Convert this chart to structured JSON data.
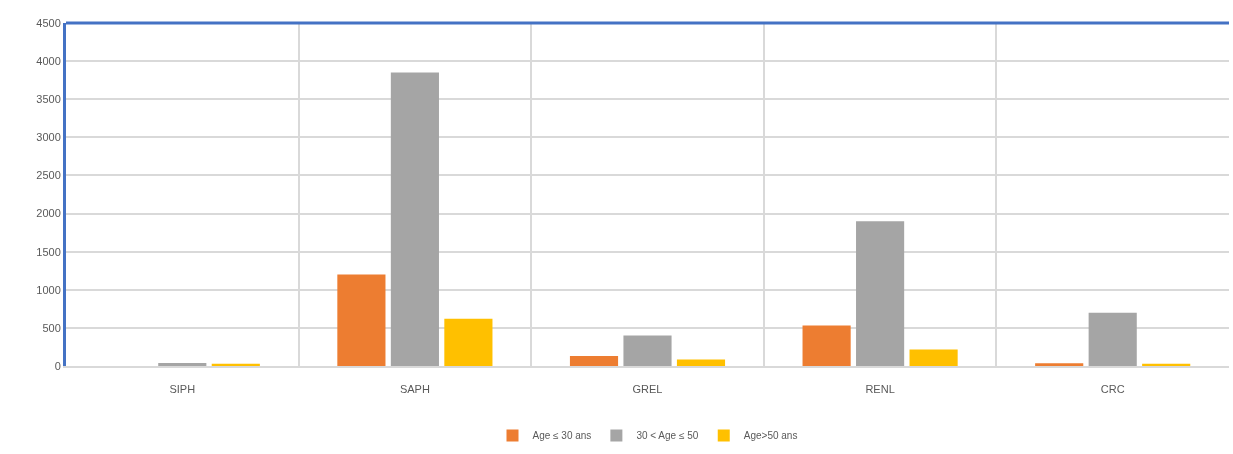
{
  "chart_data": {
    "type": "bar",
    "categories": [
      "SIPH",
      "SAPH",
      "GREL",
      "RENL",
      "CRC"
    ],
    "series": [
      {
        "name": "Age ≤ 30 ans",
        "color": "#ed7d31",
        "values": [
          0,
          1200,
          130,
          530,
          35
        ]
      },
      {
        "name": "30 < Age ≤ 50",
        "color": "#a5a5a5",
        "values": [
          40,
          3850,
          400,
          1900,
          700
        ]
      },
      {
        "name": "Age>50 ans",
        "color": "#ffc000",
        "values": [
          30,
          620,
          85,
          215,
          30
        ]
      }
    ],
    "ylim": [
      0,
      4500
    ],
    "yticks": [
      0,
      500,
      1000,
      1500,
      2000,
      2500,
      3000,
      3500,
      4000,
      4500
    ],
    "grid": true,
    "legend": "bottom"
  }
}
